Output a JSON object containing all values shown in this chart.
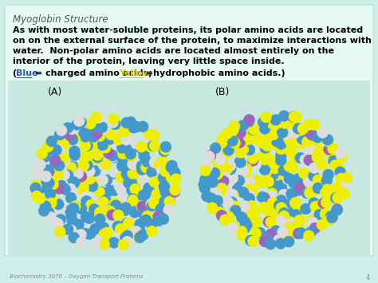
{
  "bg_color": "#cff0e8",
  "content_box_color": "#e8faf4",
  "title": "Myoglobin Structure",
  "title_color": "#555555",
  "title_fontsize": 8.5,
  "body_text_lines": [
    "As with most water-soluble proteins, its polar amino acids are located",
    "on on the external surface of the protein, to maximize interactions with",
    "water.  Non-polar amino acids are located almost entirely on the",
    "interior of the protein, leaving very little space inside."
  ],
  "body_color": "#000000",
  "body_fontsize": 8.0,
  "legend_parts": [
    {
      "text": "(",
      "color": "#000000",
      "underline": false
    },
    {
      "text": "Blue",
      "color": "#1a5cbf",
      "underline": true
    },
    {
      "text": " = charged amino acids; ",
      "color": "#000000",
      "underline": false
    },
    {
      "text": "Yellow",
      "color": "#e0c800",
      "underline": true
    },
    {
      "text": " =hydrophobic amino acids.)",
      "color": "#000000",
      "underline": false
    }
  ],
  "legend_fontsize": 8.0,
  "label_A": "(A)",
  "label_B": "(B)",
  "label_fontsize": 9,
  "footer_text": "Biochemistry 3070 – Oxygen Transport Proteins",
  "footer_fontsize": 5.0,
  "page_num": "4",
  "page_fontsize": 6,
  "blue_color": "#4499cc",
  "yellow_color": "#eeee00",
  "white_color": "#dddddd",
  "purple_color": "#9966bb",
  "img_area_color": "#c8e8df"
}
